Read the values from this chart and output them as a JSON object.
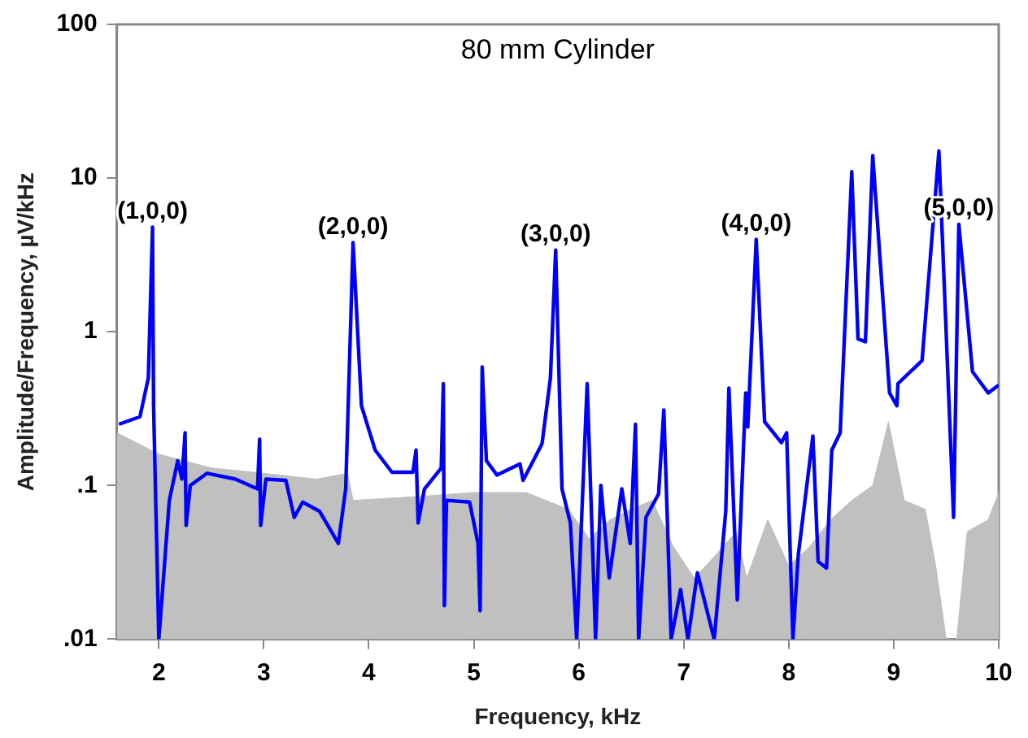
{
  "chart_data": {
    "type": "line",
    "title": "80 mm Cylinder",
    "xlabel": "Frequency, kHz",
    "ylabel": "Amplitude/Frequency, µV/kHz",
    "xlim": [
      1.6,
      10
    ],
    "xticks": [
      2,
      3,
      4,
      5,
      6,
      7,
      8,
      9,
      10
    ],
    "ylim": [
      0.01,
      100
    ],
    "yticks": [
      {
        "value": 0.01,
        "label": ".01"
      },
      {
        "value": 0.1,
        "label": ".1"
      },
      1,
      10,
      100
    ],
    "log": "y",
    "grid": false,
    "legend": false,
    "marker": "none",
    "line_style": "solid",
    "series": [
      {
        "type": "area",
        "color": "#c0c0c0",
        "x": [
          1.6,
          2.0,
          2.5,
          3.0,
          3.5,
          3.8,
          3.85,
          4.5,
          5.0,
          5.5,
          5.9,
          6.1,
          6.3,
          6.5,
          6.7,
          6.9,
          7.1,
          7.3,
          7.5,
          7.6,
          7.8,
          8.0,
          8.2,
          8.4,
          8.6,
          8.8,
          8.95,
          9.1,
          9.3,
          9.4,
          9.5,
          9.6,
          9.7,
          9.9,
          10.0
        ],
        "values": [
          0.22,
          0.16,
          0.13,
          0.12,
          0.11,
          0.12,
          0.08,
          0.085,
          0.09,
          0.09,
          0.07,
          0.045,
          0.06,
          0.07,
          0.08,
          0.04,
          0.025,
          0.035,
          0.05,
          0.025,
          0.06,
          0.03,
          0.04,
          0.06,
          0.08,
          0.1,
          0.26,
          0.08,
          0.07,
          0.03,
          0.01,
          0.01,
          0.05,
          0.06,
          0.09
        ]
      },
      {
        "type": "line",
        "color": "#0000ff",
        "x": [
          1.62,
          1.82,
          1.9,
          1.94,
          1.95,
          2.0,
          2.1,
          2.18,
          2.22,
          2.25,
          2.26,
          2.3,
          2.46,
          2.73,
          2.94,
          2.96,
          2.97,
          3.02,
          3.21,
          3.29,
          3.37,
          3.53,
          3.71,
          3.78,
          3.85,
          3.93,
          4.06,
          4.22,
          4.42,
          4.45,
          4.47,
          4.53,
          4.69,
          4.71,
          4.72,
          4.74,
          4.96,
          5.04,
          5.06,
          5.08,
          5.12,
          5.22,
          5.44,
          5.47,
          5.65,
          5.73,
          5.78,
          5.84,
          5.92,
          5.98,
          6.08,
          6.16,
          6.21,
          6.29,
          6.41,
          6.49,
          6.54,
          6.57,
          6.64,
          6.76,
          6.81,
          6.88,
          6.97,
          7.04,
          7.13,
          7.29,
          7.4,
          7.43,
          7.51,
          7.59,
          7.61,
          7.69,
          7.77,
          7.93,
          7.98,
          8.01,
          8.04,
          8.09,
          8.23,
          8.28,
          8.36,
          8.41,
          8.49,
          8.6,
          8.66,
          8.73,
          8.8,
          8.96,
          9.03,
          9.04,
          9.27,
          9.43,
          9.57,
          9.62,
          9.75,
          9.9,
          10.0
        ],
        "values": [
          0.25,
          0.28,
          0.5,
          4.8,
          0.33,
          0.01,
          0.08,
          0.145,
          0.11,
          0.22,
          0.055,
          0.1,
          0.12,
          0.11,
          0.095,
          0.2,
          0.055,
          0.11,
          0.108,
          0.062,
          0.078,
          0.068,
          0.042,
          0.095,
          3.8,
          0.33,
          0.17,
          0.122,
          0.122,
          0.17,
          0.057,
          0.095,
          0.13,
          0.46,
          0.0165,
          0.08,
          0.078,
          0.042,
          0.0153,
          0.59,
          0.145,
          0.117,
          0.138,
          0.108,
          0.187,
          0.5,
          3.4,
          0.095,
          0.057,
          0.01,
          0.46,
          0.01,
          0.1,
          0.025,
          0.095,
          0.042,
          0.25,
          0.01,
          0.062,
          0.088,
          0.31,
          0.01,
          0.021,
          0.01,
          0.027,
          0.01,
          0.068,
          0.43,
          0.018,
          0.4,
          0.24,
          4.0,
          0.26,
          0.19,
          0.22,
          0.045,
          0.01,
          0.035,
          0.21,
          0.032,
          0.029,
          0.17,
          0.22,
          11,
          0.9,
          0.86,
          14,
          0.4,
          0.33,
          0.46,
          0.65,
          15,
          0.062,
          5,
          0.55,
          0.4,
          0.45
        ]
      }
    ],
    "annotations": [
      {
        "text": "(1,0,0)",
        "x": 1.94,
        "y": 4.8
      },
      {
        "text": "(2,0,0)",
        "x": 3.85,
        "y": 3.8
      },
      {
        "text": "(3,0,0)",
        "x": 5.78,
        "y": 3.4
      },
      {
        "text": "(4,0,0)",
        "x": 7.69,
        "y": 4.0
      },
      {
        "text": "(5,0,0)",
        "x": 9.62,
        "y": 5
      }
    ]
  }
}
